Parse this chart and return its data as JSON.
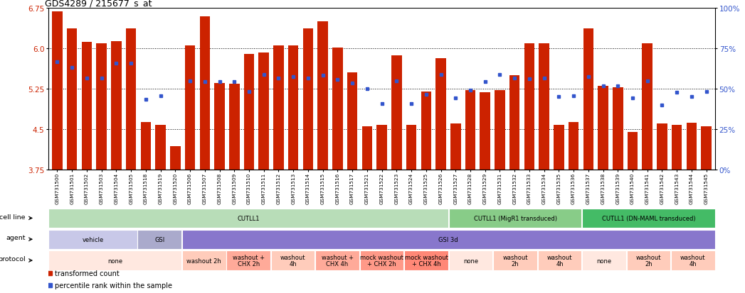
{
  "title": "GDS4289 / 215677_s_at",
  "bar_color": "#cc2200",
  "dot_color": "#3355cc",
  "ylim": [
    3.75,
    6.75
  ],
  "yticks": [
    3.75,
    4.5,
    5.25,
    6.0,
    6.75
  ],
  "right_yticks": [
    0,
    25,
    50,
    75,
    100
  ],
  "right_ylim": [
    0,
    100
  ],
  "samples": [
    "GSM731500",
    "GSM731501",
    "GSM731502",
    "GSM731503",
    "GSM731504",
    "GSM731505",
    "GSM731518",
    "GSM731519",
    "GSM731520",
    "GSM731506",
    "GSM731507",
    "GSM731508",
    "GSM731509",
    "GSM731510",
    "GSM731511",
    "GSM731512",
    "GSM731513",
    "GSM731514",
    "GSM731515",
    "GSM731516",
    "GSM731517",
    "GSM731521",
    "GSM731522",
    "GSM731523",
    "GSM731524",
    "GSM731525",
    "GSM731526",
    "GSM731527",
    "GSM731528",
    "GSM731529",
    "GSM731531",
    "GSM731532",
    "GSM731533",
    "GSM731534",
    "GSM731535",
    "GSM731536",
    "GSM731537",
    "GSM731538",
    "GSM731539",
    "GSM731540",
    "GSM731541",
    "GSM731542",
    "GSM731543",
    "GSM731544",
    "GSM731545"
  ],
  "bar_values": [
    6.69,
    6.37,
    6.12,
    6.1,
    6.13,
    6.37,
    4.63,
    4.58,
    4.18,
    6.05,
    6.6,
    5.35,
    5.34,
    5.9,
    5.92,
    6.05,
    6.06,
    6.37,
    6.5,
    6.02,
    5.55,
    4.55,
    4.58,
    5.87,
    4.58,
    5.2,
    5.82,
    4.6,
    5.22,
    5.18,
    5.22,
    5.5,
    6.1,
    6.1,
    4.58,
    4.63,
    6.37,
    5.3,
    5.28,
    4.45,
    6.1,
    4.6,
    4.58,
    4.62,
    4.55
  ],
  "dot_values": [
    5.75,
    5.65,
    5.45,
    5.45,
    5.72,
    5.72,
    5.05,
    5.12,
    null,
    5.4,
    5.38,
    5.38,
    5.38,
    5.2,
    5.52,
    5.45,
    5.48,
    5.45,
    5.5,
    5.42,
    5.35,
    5.25,
    4.98,
    5.4,
    4.98,
    5.15,
    5.52,
    5.08,
    5.22,
    5.38,
    5.52,
    5.45,
    5.43,
    5.45,
    5.1,
    5.12,
    5.48,
    5.3,
    5.3,
    5.08,
    5.4,
    4.95,
    5.18,
    5.1,
    5.2
  ],
  "cell_line_groups": [
    {
      "label": "CUTLL1",
      "start": 0,
      "end": 27,
      "color": "#b8ddb8"
    },
    {
      "label": "CUTLL1 (MigR1 transduced)",
      "start": 27,
      "end": 36,
      "color": "#88cc88"
    },
    {
      "label": "CUTLL1 (DN-MAML transduced)",
      "start": 36,
      "end": 45,
      "color": "#44bb66"
    }
  ],
  "agent_groups": [
    {
      "label": "vehicle",
      "start": 0,
      "end": 6,
      "color": "#c8c8e8"
    },
    {
      "label": "GSI",
      "start": 6,
      "end": 9,
      "color": "#aaaacc"
    },
    {
      "label": "GSI 3d",
      "start": 9,
      "end": 45,
      "color": "#8877cc"
    }
  ],
  "protocol_groups": [
    {
      "label": "none",
      "start": 0,
      "end": 9,
      "color": "#ffe8e0"
    },
    {
      "label": "washout 2h",
      "start": 9,
      "end": 12,
      "color": "#ffccbb"
    },
    {
      "label": "washout +\nCHX 2h",
      "start": 12,
      "end": 15,
      "color": "#ffaa99"
    },
    {
      "label": "washout\n4h",
      "start": 15,
      "end": 18,
      "color": "#ffccbb"
    },
    {
      "label": "washout +\nCHX 4h",
      "start": 18,
      "end": 21,
      "color": "#ffaa99"
    },
    {
      "label": "mock washout\n+ CHX 2h",
      "start": 21,
      "end": 24,
      "color": "#ff9988"
    },
    {
      "label": "mock washout\n+ CHX 4h",
      "start": 24,
      "end": 27,
      "color": "#ff8877"
    },
    {
      "label": "none",
      "start": 27,
      "end": 30,
      "color": "#ffe8e0"
    },
    {
      "label": "washout\n2h",
      "start": 30,
      "end": 33,
      "color": "#ffccbb"
    },
    {
      "label": "washout\n4h",
      "start": 33,
      "end": 36,
      "color": "#ffccbb"
    },
    {
      "label": "none",
      "start": 36,
      "end": 39,
      "color": "#ffe8e0"
    },
    {
      "label": "washout\n2h",
      "start": 39,
      "end": 42,
      "color": "#ffccbb"
    },
    {
      "label": "washout\n4h",
      "start": 42,
      "end": 45,
      "color": "#ffccbb"
    }
  ]
}
